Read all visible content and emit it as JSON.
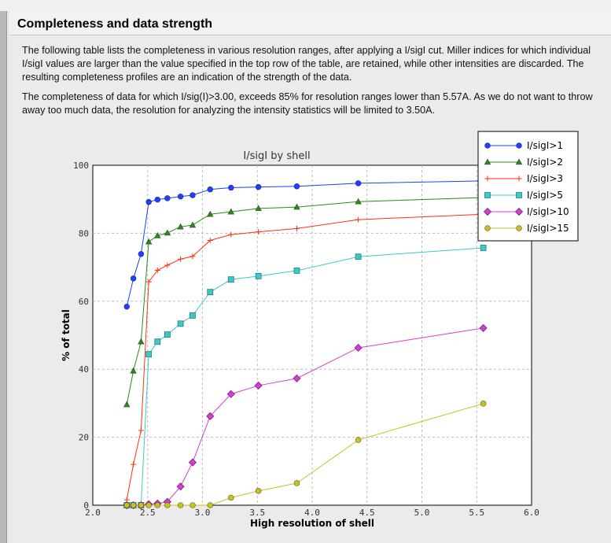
{
  "section": {
    "title": "Completeness and data strength",
    "paragraph1": "The following table lists the completeness in various resolution ranges, after applying a I/sigI cut. Miller indices for which individual I/sigI values are larger than the value specified in the top row of the table, are retained, while other intensities are discarded. The resulting completeness profiles are an indication of the strength of the data.",
    "paragraph2": "The completeness of data for which I/sig(I)>3.00, exceeds  85% for resolution ranges lower than 5.57A. As we do not want to throw away too much data, the resolution for analyzing the intensity statistics will be limited to 3.50A."
  },
  "chart_data": {
    "type": "line",
    "title": "I/sigI by shell",
    "xlabel": "High resolution of shell",
    "ylabel": "% of total",
    "xlim": [
      2.0,
      6.0
    ],
    "ylim": [
      0,
      100
    ],
    "xticks": [
      "2.0",
      "2.5",
      "3.0",
      "3.5",
      "4.0",
      "4.5",
      "5.0",
      "5.5",
      "6.0"
    ],
    "yticks": [
      "0",
      "20",
      "40",
      "60",
      "80",
      "100"
    ],
    "grid": true,
    "legend_position": "top-right",
    "x": [
      2.31,
      2.37,
      2.44,
      2.51,
      2.59,
      2.68,
      2.8,
      2.91,
      3.07,
      3.26,
      3.51,
      3.86,
      4.42,
      5.56
    ],
    "series": [
      {
        "name": "I/sigI>1",
        "color": "#1f3fff",
        "marker": "circle",
        "values": [
          58.4,
          66.7,
          73.9,
          89.2,
          89.9,
          90.3,
          90.8,
          91.2,
          92.9,
          93.4,
          93.6,
          93.8,
          94.7,
          95.4
        ]
      },
      {
        "name": "I/sigI>2",
        "color": "#2a8a1a",
        "marker": "triangle",
        "values": [
          29.6,
          39.5,
          48.1,
          77.5,
          79.3,
          80.1,
          81.9,
          82.4,
          85.6,
          86.3,
          87.3,
          87.7,
          89.3,
          90.5
        ]
      },
      {
        "name": "I/sigI>3",
        "color": "#ff3010",
        "marker": "plus",
        "values": [
          1.6,
          12.0,
          22.0,
          65.7,
          69.1,
          70.6,
          72.4,
          73.2,
          77.9,
          79.6,
          80.4,
          81.4,
          84.0,
          85.6
        ]
      },
      {
        "name": "I/sigI>5",
        "color": "#40c8c8",
        "marker": "square",
        "values": [
          0,
          0,
          0,
          44.4,
          48.1,
          50.2,
          53.4,
          55.8,
          62.7,
          66.4,
          67.4,
          69.0,
          73.1,
          75.7
        ]
      },
      {
        "name": "I/sigI>10",
        "color": "#d040d0",
        "marker": "diamond",
        "values": [
          0,
          0,
          0,
          0.3,
          0.5,
          1.0,
          5.5,
          12.6,
          26.2,
          32.7,
          35.2,
          37.3,
          46.3,
          52.1
        ]
      },
      {
        "name": "I/sigI>15",
        "color": "#c8c020",
        "marker": "circle",
        "values": [
          0,
          0,
          0,
          0,
          0,
          0,
          0,
          0,
          0,
          2.2,
          4.2,
          6.5,
          19.2,
          29.9
        ]
      }
    ]
  }
}
